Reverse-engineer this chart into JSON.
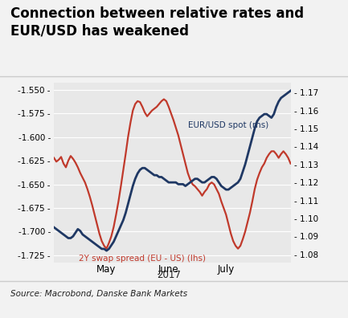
{
  "title": "Connection between relative rates and\nEUR/USD has weakened",
  "source": "Source: Macrobond, Danske Bank Markets",
  "lhs_label": "2Y swap spread (EU - US) (lhs)",
  "rhs_label": "EUR/USD spot (rhs)",
  "lhs_ylim": [
    -1.7325,
    -1.5425
  ],
  "rhs_ylim": [
    1.0755,
    1.1755
  ],
  "lhs_yticks": [
    -1.725,
    -1.7,
    -1.675,
    -1.65,
    -1.625,
    -1.6,
    -1.575,
    -1.55
  ],
  "rhs_yticks": [
    1.08,
    1.09,
    1.1,
    1.11,
    1.12,
    1.13,
    1.14,
    1.15,
    1.16,
    1.17
  ],
  "year_label": "2017",
  "red_color": "#c0392b",
  "blue_color": "#1f3864",
  "bg_color": "#e8e8e8",
  "title_bg": "#f0f0f0",
  "white": "#ffffff",
  "n_points": 100,
  "lhs_data": [
    -1.622,
    -1.626,
    -1.624,
    -1.621,
    -1.628,
    -1.632,
    -1.625,
    -1.62,
    -1.623,
    -1.627,
    -1.632,
    -1.638,
    -1.643,
    -1.648,
    -1.655,
    -1.663,
    -1.672,
    -1.682,
    -1.692,
    -1.702,
    -1.71,
    -1.715,
    -1.718,
    -1.712,
    -1.705,
    -1.695,
    -1.682,
    -1.668,
    -1.652,
    -1.635,
    -1.618,
    -1.6,
    -1.585,
    -1.572,
    -1.565,
    -1.562,
    -1.563,
    -1.568,
    -1.574,
    -1.578,
    -1.575,
    -1.572,
    -1.57,
    -1.568,
    -1.565,
    -1.562,
    -1.56,
    -1.562,
    -1.568,
    -1.575,
    -1.582,
    -1.59,
    -1.598,
    -1.608,
    -1.618,
    -1.628,
    -1.638,
    -1.645,
    -1.65,
    -1.652,
    -1.655,
    -1.658,
    -1.662,
    -1.658,
    -1.655,
    -1.65,
    -1.648,
    -1.65,
    -1.655,
    -1.66,
    -1.668,
    -1.675,
    -1.682,
    -1.692,
    -1.702,
    -1.71,
    -1.715,
    -1.718,
    -1.715,
    -1.708,
    -1.7,
    -1.69,
    -1.68,
    -1.668,
    -1.655,
    -1.645,
    -1.638,
    -1.632,
    -1.628,
    -1.622,
    -1.618,
    -1.615,
    -1.615,
    -1.618,
    -1.622,
    -1.618,
    -1.615,
    -1.618,
    -1.622,
    -1.628
  ],
  "rhs_data": [
    1.095,
    1.094,
    1.093,
    1.092,
    1.091,
    1.09,
    1.089,
    1.089,
    1.09,
    1.092,
    1.094,
    1.093,
    1.091,
    1.09,
    1.089,
    1.088,
    1.087,
    1.086,
    1.085,
    1.084,
    1.083,
    1.083,
    1.082,
    1.083,
    1.085,
    1.087,
    1.09,
    1.093,
    1.096,
    1.099,
    1.103,
    1.108,
    1.113,
    1.118,
    1.122,
    1.125,
    1.127,
    1.128,
    1.128,
    1.127,
    1.126,
    1.125,
    1.124,
    1.124,
    1.123,
    1.123,
    1.122,
    1.121,
    1.12,
    1.12,
    1.12,
    1.12,
    1.119,
    1.119,
    1.119,
    1.118,
    1.119,
    1.12,
    1.121,
    1.122,
    1.122,
    1.121,
    1.12,
    1.12,
    1.121,
    1.122,
    1.123,
    1.123,
    1.122,
    1.12,
    1.118,
    1.117,
    1.116,
    1.116,
    1.117,
    1.118,
    1.119,
    1.12,
    1.122,
    1.126,
    1.13,
    1.135,
    1.14,
    1.145,
    1.15,
    1.154,
    1.156,
    1.157,
    1.158,
    1.158,
    1.157,
    1.156,
    1.158,
    1.162,
    1.165,
    1.167,
    1.168,
    1.169,
    1.17,
    1.171
  ]
}
